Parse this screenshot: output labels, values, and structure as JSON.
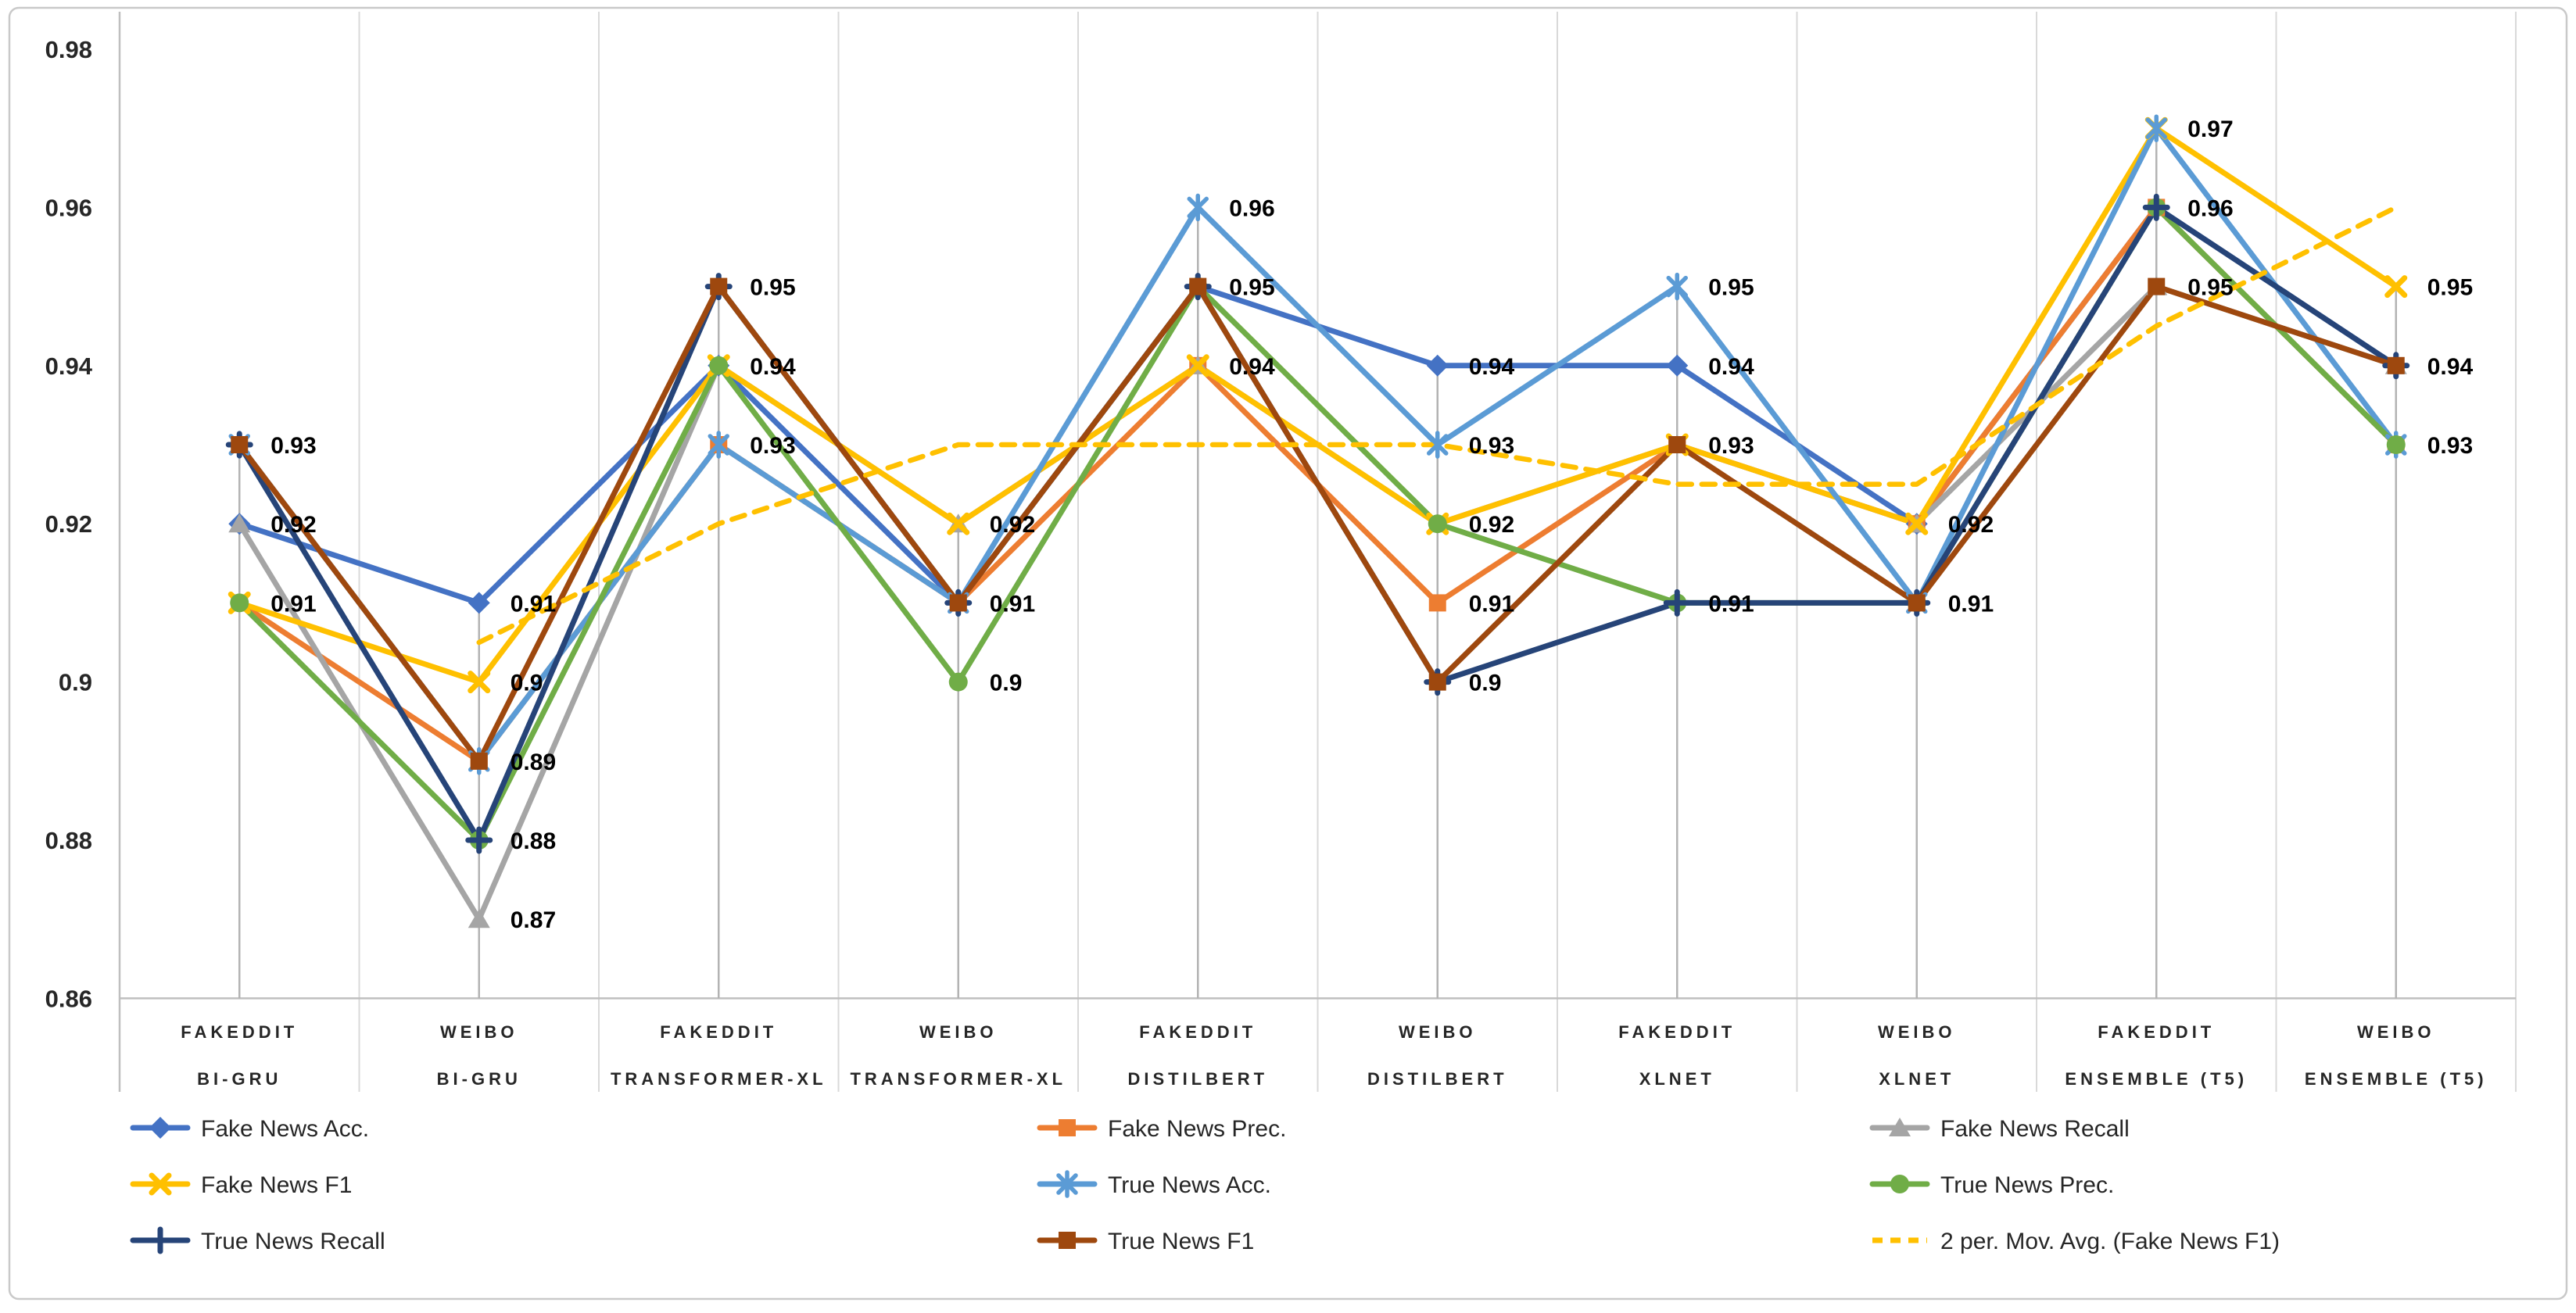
{
  "chart_data": {
    "type": "line",
    "title": "",
    "grid": "vertical",
    "legend_position": "bottom",
    "y_axis": {
      "min": 0.86,
      "max": 0.98,
      "step": 0.02,
      "tick_labels": [
        "0.98",
        "0.96",
        "0.94",
        "0.92",
        "0.9",
        "0.88",
        "0.86"
      ]
    },
    "categories": [
      {
        "dataset": "FAKEDDIT",
        "model": "BI-GRU"
      },
      {
        "dataset": "WEIBO",
        "model": "BI-GRU"
      },
      {
        "dataset": "FAKEDDIT",
        "model": "TRANSFORMER-XL"
      },
      {
        "dataset": "WEIBO",
        "model": "TRANSFORMER-XL"
      },
      {
        "dataset": "FAKEDDIT",
        "model": "DISTILBERT"
      },
      {
        "dataset": "WEIBO",
        "model": "DISTILBERT"
      },
      {
        "dataset": "FAKEDDIT",
        "model": "XLNET"
      },
      {
        "dataset": "WEIBO",
        "model": "XLNET"
      },
      {
        "dataset": "FAKEDDIT",
        "model": "ENSEMBLE (T5)"
      },
      {
        "dataset": "WEIBO",
        "model": "ENSEMBLE (T5)"
      }
    ],
    "series": [
      {
        "name": "Fake News Acc.",
        "color": "#4472C4",
        "marker": "diamond",
        "dashed": false,
        "values": [
          0.92,
          0.91,
          0.94,
          0.91,
          0.95,
          0.94,
          0.94,
          0.92,
          0.96,
          0.94
        ]
      },
      {
        "name": "Fake News Prec.",
        "color": "#ED7D31",
        "marker": "square",
        "dashed": false,
        "values": [
          0.91,
          0.89,
          0.93,
          0.91,
          0.94,
          0.91,
          0.93,
          0.92,
          0.96,
          0.93
        ]
      },
      {
        "name": "Fake News Recall",
        "color": "#A5A5A5",
        "marker": "triangle",
        "dashed": false,
        "values": [
          0.92,
          0.87,
          0.94,
          0.92,
          0.94,
          0.92,
          0.93,
          0.92,
          0.95,
          0.94
        ]
      },
      {
        "name": "Fake News F1",
        "color": "#FFC000",
        "marker": "x",
        "dashed": false,
        "values": [
          0.91,
          0.9,
          0.94,
          0.92,
          0.94,
          0.92,
          0.93,
          0.92,
          0.97,
          0.95
        ]
      },
      {
        "name": "True News Acc.",
        "color": "#5B9BD5",
        "marker": "star",
        "dashed": false,
        "values": [
          0.93,
          0.89,
          0.93,
          0.91,
          0.96,
          0.93,
          0.95,
          0.91,
          0.97,
          0.93
        ]
      },
      {
        "name": "True News Prec.",
        "color": "#70AD47",
        "marker": "circle",
        "dashed": false,
        "values": [
          0.91,
          0.88,
          0.94,
          0.9,
          0.95,
          0.92,
          0.91,
          0.91,
          0.96,
          0.93
        ]
      },
      {
        "name": "True News Recall",
        "color": "#264478",
        "marker": "plus",
        "dashed": false,
        "values": [
          0.93,
          0.88,
          0.95,
          0.91,
          0.95,
          0.9,
          0.91,
          0.91,
          0.96,
          0.94
        ]
      },
      {
        "name": "True News F1",
        "color": "#9E480E",
        "marker": "square",
        "dashed": false,
        "values": [
          0.93,
          0.89,
          0.95,
          0.91,
          0.95,
          0.9,
          0.93,
          0.91,
          0.95,
          0.94
        ]
      },
      {
        "name": "2 per. Mov. Avg. (Fake News F1)",
        "color": "#FFC000",
        "marker": "none",
        "dashed": true,
        "values": [
          null,
          0.905,
          0.92,
          0.93,
          0.93,
          0.93,
          0.925,
          0.925,
          0.945,
          0.96
        ]
      }
    ],
    "colors": {
      "boundary_gridline": "#D9D9D9",
      "axis_line": "#BFBFBF",
      "drop_line": "#B3B3B3",
      "tick_text": "#262626",
      "data_label_text": "#000000",
      "border": "#C9C9C9"
    }
  }
}
